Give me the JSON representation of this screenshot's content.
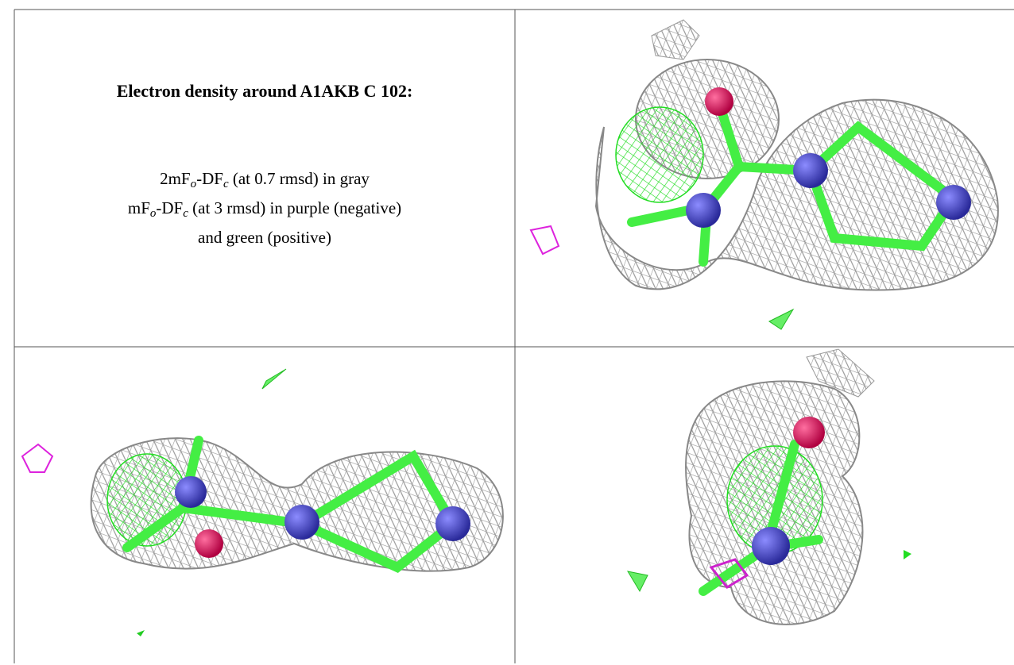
{
  "title": "Electron density around A1AKB C 102:",
  "legend": [
    [
      "2mF",
      "o",
      "-DF",
      "c",
      " (at 0.7 rmsd) in gray"
    ],
    [
      "mF",
      "o",
      "-DF",
      "c",
      " (at 3 rmsd) in purple (negative)"
    ],
    [
      "and green (positive)"
    ]
  ]
}
